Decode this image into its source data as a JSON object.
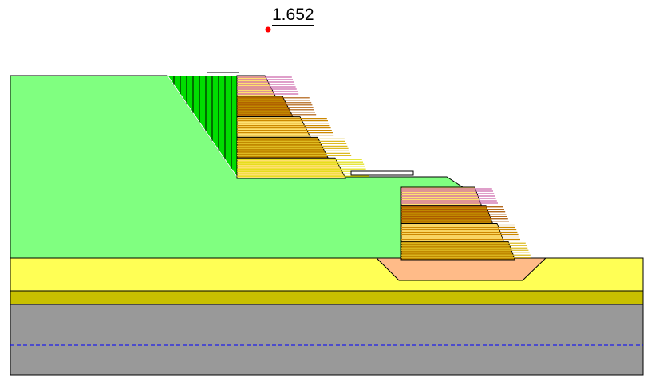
{
  "factor_of_safety": "1.652",
  "colors": {
    "fill_soil": "#80ff80",
    "foundation_yellow": "#ffff55",
    "olive_layer": "#c8c000",
    "bedrock_gray": "#999999",
    "trench_fill": "#ffbb88",
    "failure_wedge": "#00dd00",
    "water_table": "#0000ff",
    "critical_center": "#ff0000",
    "reinforcement_bands": [
      "#cc66aa",
      "#aa5500",
      "#cc8800",
      "#ddbb22",
      "#dddd00"
    ]
  }
}
